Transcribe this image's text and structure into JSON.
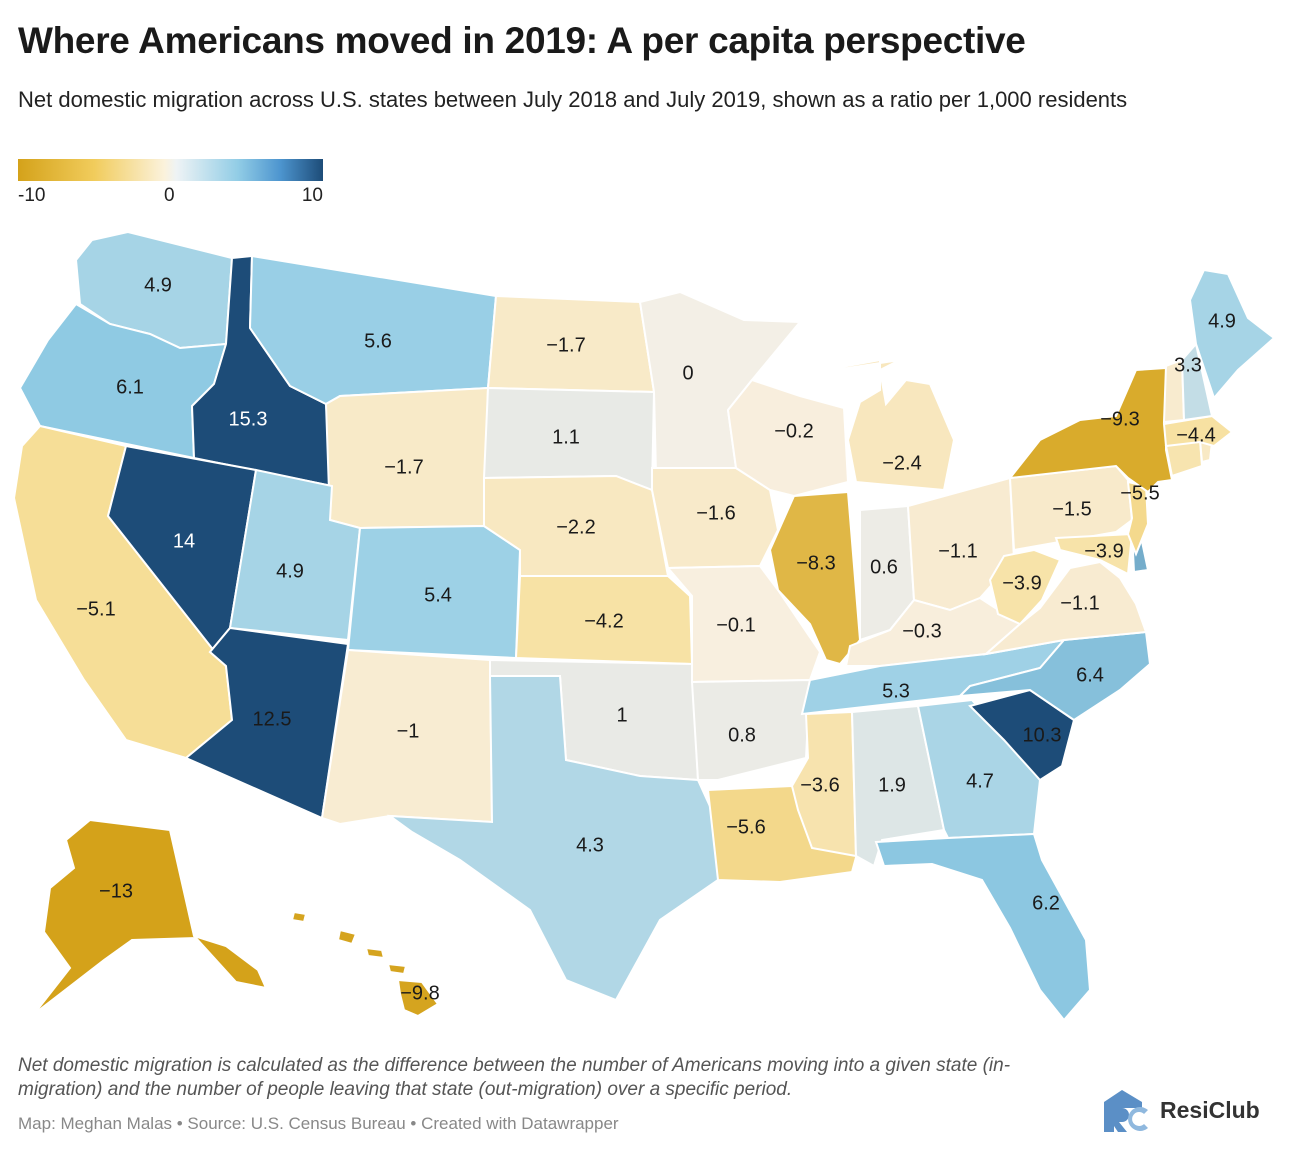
{
  "title": "Where Americans moved in 2019: A per capita perspective",
  "subtitle": "Net domestic migration across U.S. states between July 2018 and July 2019, shown as a ratio per 1,000 residents",
  "legend": {
    "min": "-10",
    "mid": "0",
    "max": "10"
  },
  "colors": {
    "neg_strong": "#d4a21a",
    "neg": "#f1cc5c",
    "neutral": "#f8efe0",
    "pos": "#92cde6",
    "pos_strong": "#1d4c78"
  },
  "chart_data": {
    "type": "choropleth",
    "title": "Where Americans moved in 2019: A per capita perspective",
    "metric": "Net domestic migration per 1,000 residents",
    "scale_range": [
      -10,
      10
    ],
    "states": [
      {
        "state": "WA",
        "value": 4.9
      },
      {
        "state": "OR",
        "value": 6.1
      },
      {
        "state": "CA",
        "value": -5.1
      },
      {
        "state": "ID",
        "value": 15.3
      },
      {
        "state": "NV",
        "value": 14
      },
      {
        "state": "MT",
        "value": 5.6
      },
      {
        "state": "WY",
        "value": -1.7
      },
      {
        "state": "UT",
        "value": 4.9
      },
      {
        "state": "CO",
        "value": 5.4
      },
      {
        "state": "AZ",
        "value": 12.5
      },
      {
        "state": "NM",
        "value": -1
      },
      {
        "state": "ND",
        "value": -1.7
      },
      {
        "state": "SD",
        "value": 1.1
      },
      {
        "state": "NE",
        "value": -2.2
      },
      {
        "state": "KS",
        "value": -4.2
      },
      {
        "state": "OK",
        "value": 1
      },
      {
        "state": "TX",
        "value": 4.3
      },
      {
        "state": "MN",
        "value": 0
      },
      {
        "state": "IA",
        "value": -1.6
      },
      {
        "state": "MO",
        "value": -0.1
      },
      {
        "state": "AR",
        "value": 0.8
      },
      {
        "state": "LA",
        "value": -5.6
      },
      {
        "state": "WI",
        "value": -0.2
      },
      {
        "state": "IL",
        "value": -8.3
      },
      {
        "state": "MI",
        "value": -2.4
      },
      {
        "state": "IN",
        "value": 0.6
      },
      {
        "state": "OH",
        "value": -1.1
      },
      {
        "state": "KY",
        "value": -0.3
      },
      {
        "state": "TN",
        "value": 5.3
      },
      {
        "state": "MS",
        "value": -3.6
      },
      {
        "state": "AL",
        "value": 1.9
      },
      {
        "state": "GA",
        "value": 4.7
      },
      {
        "state": "FL",
        "value": 6.2
      },
      {
        "state": "SC",
        "value": 10.3
      },
      {
        "state": "NC",
        "value": 6.4
      },
      {
        "state": "VA",
        "value": -1.1
      },
      {
        "state": "WV",
        "value": -3.9
      },
      {
        "state": "MD",
        "value": -3.9
      },
      {
        "state": "PA",
        "value": -1.5
      },
      {
        "state": "NY",
        "value": -9.3
      },
      {
        "state": "NJ",
        "value": -5.5
      },
      {
        "state": "MA",
        "value": -4.4
      },
      {
        "state": "NH",
        "value": 3.3
      },
      {
        "state": "ME",
        "value": 4.9
      },
      {
        "state": "AK",
        "value": -13
      },
      {
        "state": "HI",
        "value": -9.8
      }
    ]
  },
  "labels": {
    "WA": "4.9",
    "OR": "6.1",
    "CA": "−5.1",
    "ID": "15.3",
    "NV": "14",
    "MT": "5.6",
    "WY": "−1.7",
    "UT": "4.9",
    "CO": "5.4",
    "AZ": "12.5",
    "NM": "−1",
    "ND": "−1.7",
    "SD": "1.1",
    "NE": "−2.2",
    "KS": "−4.2",
    "OK": "1",
    "TX": "4.3",
    "MN": "0",
    "IA": "−1.6",
    "MO": "−0.1",
    "AR": "0.8",
    "LA": "−5.6",
    "WI": "−0.2",
    "IL": "−8.3",
    "MI": "−2.4",
    "IN": "0.6",
    "OH": "−1.1",
    "KY": "−0.3",
    "TN": "5.3",
    "MS": "−3.6",
    "AL": "1.9",
    "GA": "4.7",
    "FL": "6.2",
    "SC": "10.3",
    "NC": "6.4",
    "VA": "−1.1",
    "WV": "−3.9",
    "MD": "−3.9",
    "PA": "−1.5",
    "NY": "−9.3",
    "NJ": "−5.5",
    "MA": "−4.4",
    "NH": "3.3",
    "ME": "4.9",
    "AK": "−13",
    "HI": "−9.8"
  },
  "note": "Net domestic migration is calculated as the difference between the number of Americans moving into a given state (in-migration) and the number of people leaving that state (out-migration) over a specific period.",
  "credits": "Map: Meghan Malas • Source: U.S. Census Bureau • Created with Datawrapper",
  "logo": {
    "name": "ResiClub"
  }
}
